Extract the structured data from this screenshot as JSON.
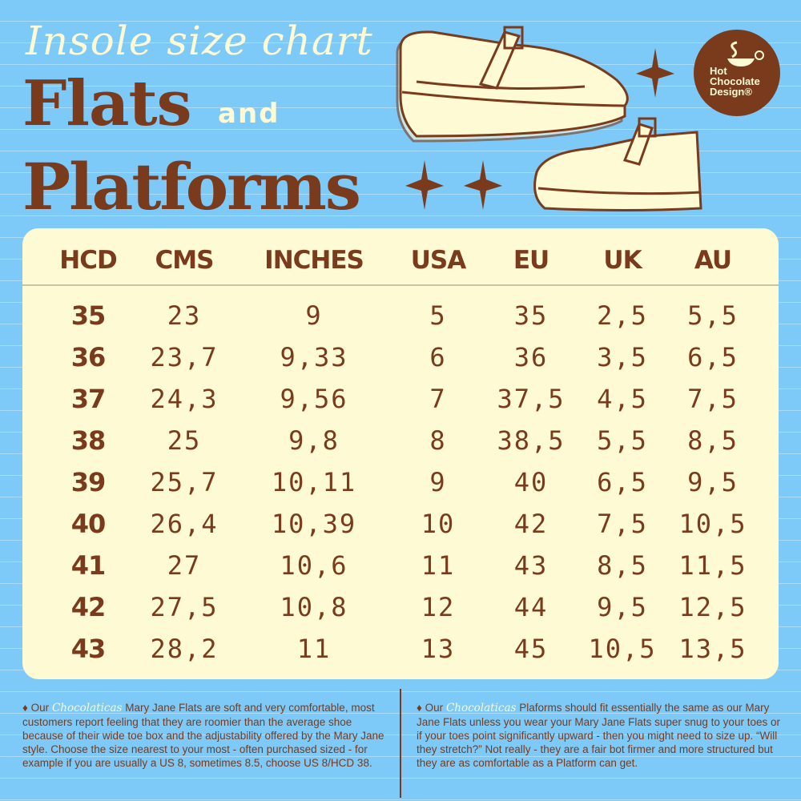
{
  "title": {
    "script": "Insole size chart",
    "line1": "Flats",
    "and": "and",
    "line2": "Platforms"
  },
  "logo": {
    "lines": [
      "Hot",
      "Chocolate",
      "Design®"
    ]
  },
  "colors": {
    "background": "#7dc9f7",
    "brown": "#7a3a1c",
    "cream": "#fdfad4"
  },
  "chart_data": {
    "type": "table",
    "columns": [
      "HCD",
      "CMS",
      "INCHES",
      "USA",
      "EU",
      "UK",
      "AU"
    ],
    "rows": [
      [
        "35",
        "23",
        "9",
        "5",
        "35",
        "2,5",
        "5,5"
      ],
      [
        "36",
        "23,7",
        "9,33",
        "6",
        "36",
        "3,5",
        "6,5"
      ],
      [
        "37",
        "24,3",
        "9,56",
        "7",
        "37,5",
        "4,5",
        "7,5"
      ],
      [
        "38",
        "25",
        "9,8",
        "8",
        "38,5",
        "5,5",
        "8,5"
      ],
      [
        "39",
        "25,7",
        "10,11",
        "9",
        "40",
        "6,5",
        "9,5"
      ],
      [
        "40",
        "26,4",
        "10,39",
        "10",
        "42",
        "7,5",
        "10,5"
      ],
      [
        "41",
        "27",
        "10,6",
        "11",
        "43",
        "8,5",
        "11,5"
      ],
      [
        "42",
        "27,5",
        "10,8",
        "12",
        "44",
        "9,5",
        "12,5"
      ],
      [
        "43",
        "28,2",
        "11",
        "13",
        "45",
        "10,5",
        "13,5"
      ]
    ]
  },
  "notes": [
    {
      "bullet": "♦",
      "prefix": "Our",
      "brand": "Chocolaticas",
      "text": "Mary Jane Flats are soft and very comfortable, most customers report feeling that they are roomier than the average shoe because of their wide toe box and the adjustability offered by the Mary Jane style. Choose the size nearest to your most - often purchased sized - for example if you are usually a US 8, sometimes 8.5, choose US 8/HCD 38."
    },
    {
      "bullet": "♦",
      "prefix": "Our",
      "brand": "Chocolaticas",
      "text": "Plaforms should fit essentially the same as our Mary Jane Flats unless you wear your Mary Jane Flats super snug to your toes or if your toes point significantly upward - then you might need to size  up. “Will they stretch?” Not really - they are a fair bot firmer and more structured but they are as comfortable as a Platform can get."
    }
  ]
}
